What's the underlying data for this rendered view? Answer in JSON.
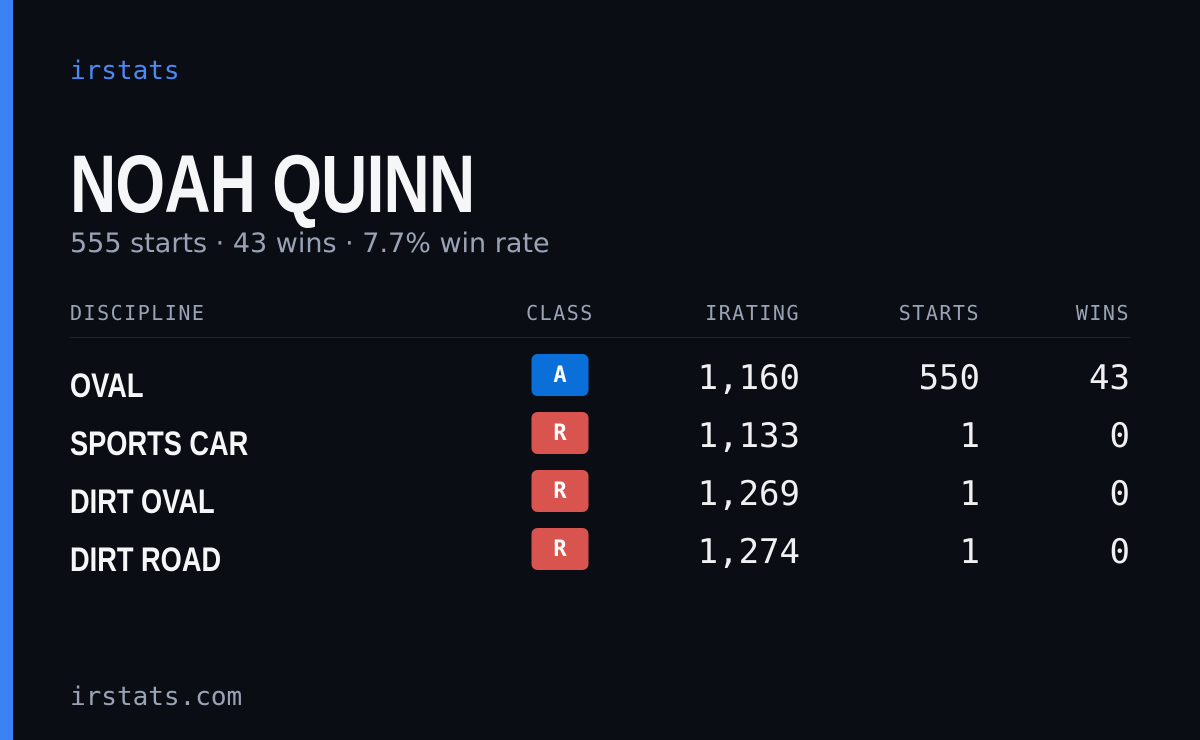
{
  "header": {
    "brand": "irstats",
    "name": "NOAH QUINN",
    "summary": "555 starts · 43 wins · 7.7% win rate"
  },
  "table": {
    "columns": [
      "DISCIPLINE",
      "CLASS",
      "IRATING",
      "STARTS",
      "WINS"
    ],
    "rows": [
      {
        "discipline": "OVAL",
        "class": "A",
        "class_color": "#0a6fd8",
        "irating": "1,160",
        "starts": "550",
        "wins": "43"
      },
      {
        "discipline": "SPORTS CAR",
        "class": "R",
        "class_color": "#d9534f",
        "irating": "1,133",
        "starts": "1",
        "wins": "0"
      },
      {
        "discipline": "DIRT OVAL",
        "class": "R",
        "class_color": "#d9534f",
        "irating": "1,269",
        "starts": "1",
        "wins": "0"
      },
      {
        "discipline": "DIRT ROAD",
        "class": "R",
        "class_color": "#d9534f",
        "irating": "1,274",
        "starts": "1",
        "wins": "0"
      }
    ]
  },
  "footer": {
    "site": "irstats.com"
  }
}
